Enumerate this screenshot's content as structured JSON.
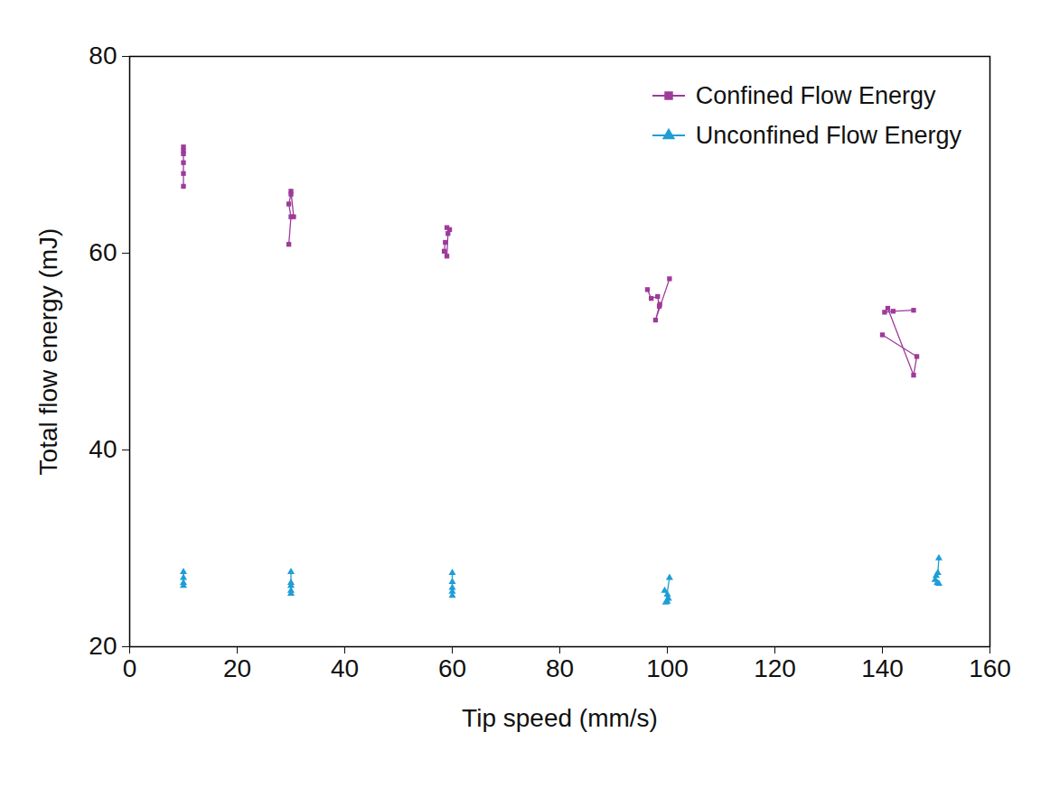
{
  "chart_data": {
    "type": "line",
    "x_label": "Tip speed (mm/s)",
    "y_label": "Total flow energy (mJ)",
    "xlim": [
      0,
      160
    ],
    "xticks": [
      0,
      20,
      40,
      60,
      80,
      100,
      120,
      140,
      160
    ],
    "ylim": [
      20,
      80
    ],
    "yticks": [
      20,
      40,
      60,
      80
    ],
    "legend": "top-right",
    "series": [
      {
        "name": "Confined Flow Energy",
        "color": "#9e3a9a",
        "marker": "square",
        "line_style": "solid",
        "x": [
          10.0,
          10.0,
          10.0,
          10.0,
          10.0,
          10.0,
          null,
          29.6,
          30.0,
          29.6,
          30.0,
          30.0,
          30.5,
          null,
          58.7,
          58.5,
          59.0,
          59.2,
          59.5,
          59.0,
          null,
          96.3,
          97.0,
          98.2,
          98.5,
          98.6,
          97.8,
          100.4,
          null,
          140.0,
          146.4,
          145.8,
          141.0,
          140.4,
          142.0,
          145.8
        ],
        "values": [
          70.8,
          70.4,
          70.1,
          69.2,
          68.1,
          66.8,
          null,
          60.9,
          63.7,
          65.0,
          66.0,
          66.3,
          63.7,
          null,
          61.1,
          60.2,
          59.7,
          62.0,
          62.4,
          62.6,
          null,
          56.3,
          55.4,
          55.6,
          54.6,
          54.8,
          53.2,
          57.4,
          null,
          51.7,
          49.5,
          47.6,
          54.4,
          54.0,
          54.1,
          54.2
        ]
      },
      {
        "name": "Unconfined Flow Energy",
        "color": "#1f9ed6",
        "marker": "triangle",
        "line_style": "solid",
        "x": [
          10.0,
          10.0,
          10.0,
          10.0,
          null,
          30.0,
          30.0,
          30.0,
          30.0,
          30.0,
          null,
          60.0,
          60.0,
          60.0,
          60.0,
          60.0,
          null,
          99.5,
          100.0,
          100.2,
          100.0,
          99.7,
          100.4,
          null,
          150.5,
          150.3,
          150.0,
          149.8,
          150.2,
          150.5
        ],
        "values": [
          27.6,
          27.0,
          26.5,
          26.2,
          null,
          27.6,
          26.5,
          26.2,
          25.7,
          25.4,
          null,
          27.5,
          26.6,
          26.0,
          25.6,
          25.2,
          null,
          25.7,
          25.3,
          24.9,
          24.6,
          24.5,
          27.0,
          null,
          29.0,
          27.5,
          27.2,
          26.8,
          26.5,
          26.4
        ]
      }
    ]
  }
}
